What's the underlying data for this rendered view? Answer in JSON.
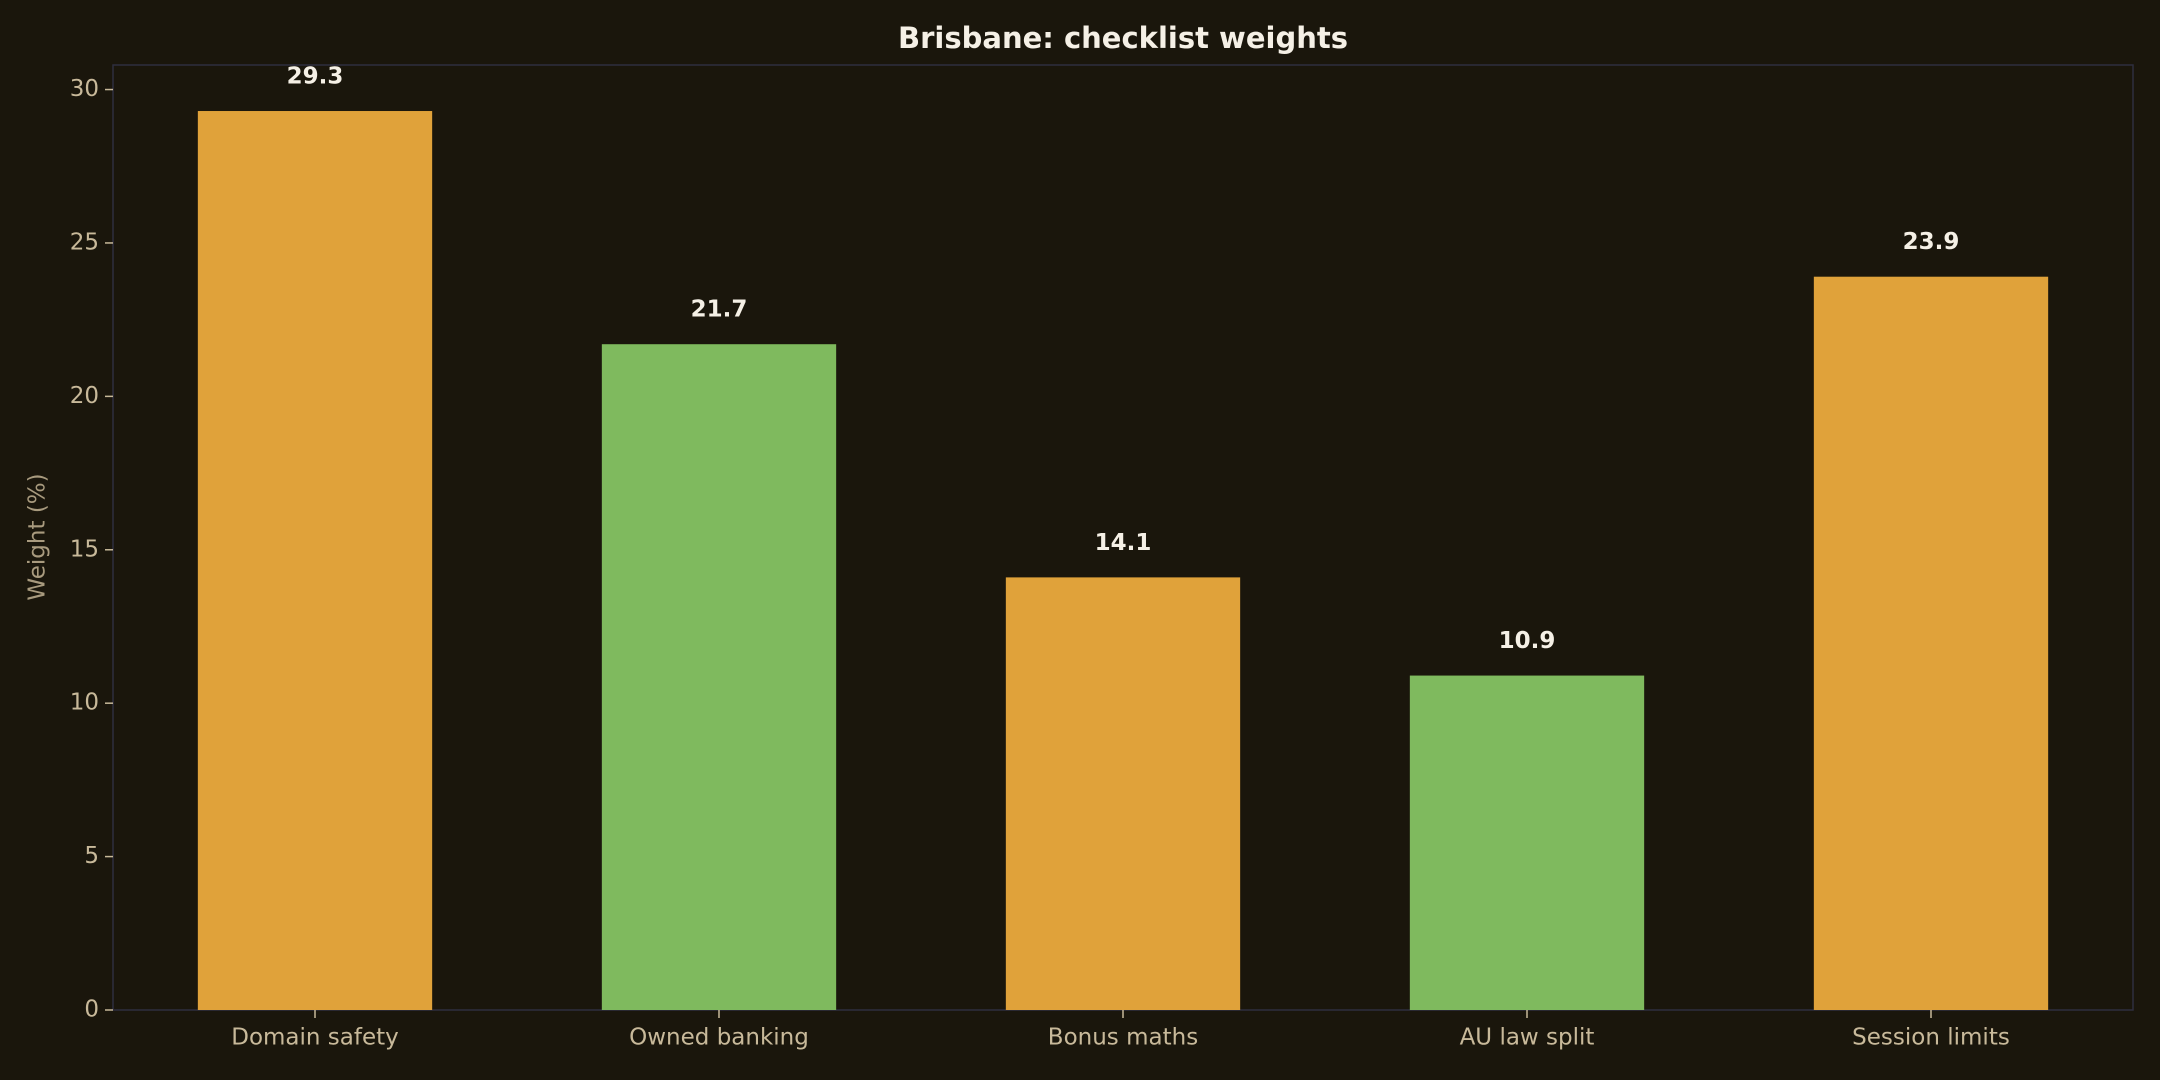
{
  "chart_data": {
    "type": "bar",
    "title": "Brisbane: checklist weights",
    "ylabel": "Weight (%)",
    "categories": [
      "Domain safety",
      "Owned banking",
      "Bonus maths",
      "AU law split",
      "Session limits"
    ],
    "values": [
      29.3,
      21.7,
      14.1,
      10.9,
      23.9
    ],
    "colors": [
      "#e0a23a",
      "#7fba5e",
      "#e0a23a",
      "#7fba5e",
      "#e0a23a"
    ],
    "ylim": [
      0,
      30.8
    ],
    "yticks": [
      0,
      5,
      10,
      15,
      20,
      25,
      30
    ],
    "grid": false
  }
}
